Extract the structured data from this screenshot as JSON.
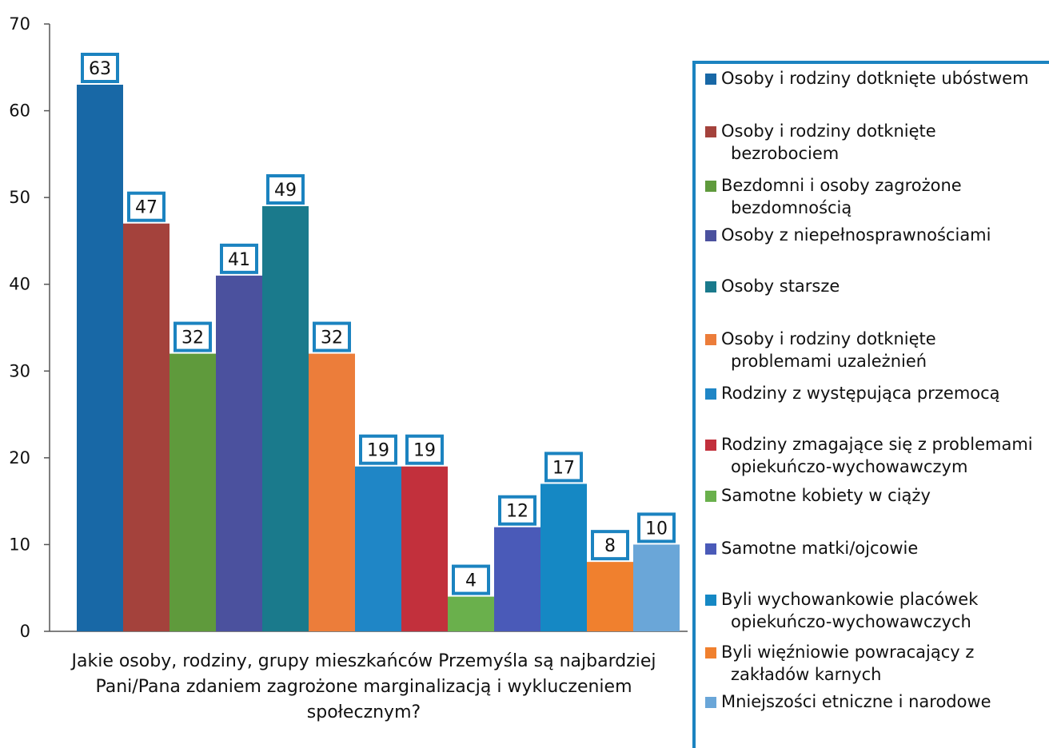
{
  "chart_data": {
    "type": "bar",
    "xlabel": "Jakie osoby, rodziny, grupy mieszkańców Przemyśla są najbardziej Pani/Pana zdaniem zagrożone marginalizacją i wykluczeniem społecznym?",
    "xlabel_lines": [
      "Jakie osoby, rodziny, grupy mieszkańców Przemyśla są najbardziej",
      "Pani/Pana zdaniem zagrożone marginalizacją i wykluczeniem",
      "społecznym?"
    ],
    "ylim": [
      0,
      70
    ],
    "yticks": [
      "0",
      "10",
      "20",
      "30",
      "40",
      "50",
      "60",
      "70"
    ],
    "grid": false,
    "legend_position": "right",
    "series": [
      {
        "name": "Osoby i rodziny dotknięte ubóstwem",
        "name_lines": [
          "Osoby i rodziny dotknięte ubóstwem"
        ],
        "value": 63,
        "color": "#1868a6"
      },
      {
        "name": "Osoby i rodziny dotknięte bezrobociem",
        "name_lines": [
          "Osoby i rodziny dotknięte",
          "bezrobociem"
        ],
        "value": 47,
        "color": "#a4423c"
      },
      {
        "name": "Bezdomni i osoby zagrożone bezdomnością",
        "name_lines": [
          "Bezdomni i osoby zagrożone",
          "bezdomnością"
        ],
        "value": 32,
        "color": "#5f9a3c"
      },
      {
        "name": "Osoby z niepełnosprawnościami",
        "name_lines": [
          "Osoby z niepełnosprawnościami"
        ],
        "value": 41,
        "color": "#4b519e"
      },
      {
        "name": "Osoby starsze",
        "name_lines": [
          "Osoby starsze"
        ],
        "value": 49,
        "color": "#1a7a8c"
      },
      {
        "name": "Osoby i rodziny dotknięte problemami uzależnień",
        "name_lines": [
          "Osoby i rodziny dotknięte",
          "problemami uzależnień"
        ],
        "value": 32,
        "color": "#ec7d3a"
      },
      {
        "name": "Rodziny z występująca przemocą",
        "name_lines": [
          "Rodziny z występująca przemocą"
        ],
        "value": 19,
        "color": "#1f86c6"
      },
      {
        "name": "Rodziny zmagające się z problemami opiekuńczo-wychowawczym",
        "name_lines": [
          "Rodziny zmagające się z problemami",
          "opiekuńczo-wychowawczym"
        ],
        "value": 19,
        "color": "#c2303c"
      },
      {
        "name": "Samotne kobiety w ciąży",
        "name_lines": [
          "Samotne kobiety w ciąży"
        ],
        "value": 4,
        "color": "#6ab04c"
      },
      {
        "name": "Samotne matki/ojcowie",
        "name_lines": [
          "Samotne matki/ojcowie"
        ],
        "value": 12,
        "color": "#4a5ab8"
      },
      {
        "name": "Byli wychowankowie placówek opiekuńczo-wychowawczych",
        "name_lines": [
          "Byli wychowankowie placówek",
          "opiekuńczo-wychowawczych"
        ],
        "value": 17,
        "color": "#1588c4"
      },
      {
        "name": "Byli więźniowie powracający z zakładów karnych",
        "name_lines": [
          "Byli więźniowie powracający z",
          "zakładów karnych"
        ],
        "value": 8,
        "color": "#f0802e"
      },
      {
        "name": "Mniejszości etniczne i narodowe",
        "name_lines": [
          "Mniejszości etniczne i narodowe"
        ],
        "value": 10,
        "color": "#6aa6d8"
      }
    ],
    "label_box_color": "#1b83c0"
  }
}
